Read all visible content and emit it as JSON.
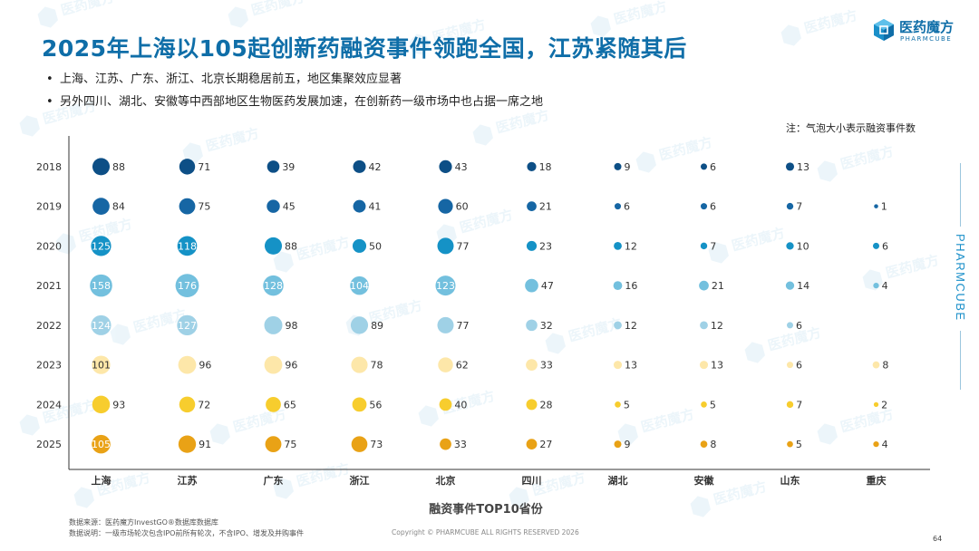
{
  "header": {
    "title": "2025年上海以105起创新药融资事件领跑全国，江苏紧随其后",
    "logo_cn": "医药魔方",
    "logo_en": "PHARMCUBE",
    "logo_icon": "cube-icon"
  },
  "bullets": [
    "上海、江苏、广东、浙江、北京长期稳居前五，地区集聚效应显著",
    "另外四川、湖北、安徽等中西部地区生物医药发展加速，在创新药一级市场中也占据一席之地"
  ],
  "note": "注：气泡大小表示融资事件数",
  "side_brand": "PHARMCUBE",
  "watermark": "医药魔方",
  "chart_data": {
    "type": "scatter",
    "subtype": "bubble",
    "xlabel": "融资事件TOP10省份",
    "ylabel": "",
    "categories": [
      "上海",
      "江苏",
      "广东",
      "浙江",
      "北京",
      "四川",
      "湖北",
      "安徽",
      "山东",
      "重庆"
    ],
    "years": [
      "2018",
      "2019",
      "2020",
      "2021",
      "2022",
      "2023",
      "2024",
      "2025"
    ],
    "series": [
      {
        "name": "2018",
        "color": "#0d4f86",
        "values": [
          88,
          71,
          39,
          42,
          43,
          18,
          9,
          6,
          13,
          null
        ]
      },
      {
        "name": "2019",
        "color": "#1666a4",
        "values": [
          84,
          75,
          45,
          41,
          60,
          21,
          6,
          6,
          7,
          1
        ]
      },
      {
        "name": "2020",
        "color": "#1592c6",
        "values": [
          125,
          118,
          88,
          50,
          77,
          23,
          12,
          7,
          10,
          6
        ]
      },
      {
        "name": "2021",
        "color": "#73c0de",
        "values": [
          158,
          176,
          128,
          104,
          123,
          47,
          16,
          21,
          14,
          4
        ]
      },
      {
        "name": "2022",
        "color": "#9fd1e6",
        "values": [
          124,
          127,
          98,
          89,
          77,
          32,
          12,
          12,
          6,
          null
        ]
      },
      {
        "name": "2023",
        "color": "#fde7a9",
        "values": [
          101,
          96,
          96,
          78,
          62,
          33,
          13,
          13,
          6,
          8
        ]
      },
      {
        "name": "2024",
        "color": "#f7cd2e",
        "values": [
          93,
          72,
          65,
          56,
          40,
          28,
          5,
          5,
          7,
          2
        ]
      },
      {
        "name": "2025",
        "color": "#e9a216",
        "values": [
          105,
          91,
          75,
          73,
          33,
          27,
          9,
          8,
          5,
          4
        ]
      }
    ],
    "size_encodes": "value",
    "grid": false,
    "legend": "none"
  },
  "footer": {
    "source": "数据来源：医药魔方InvestGO®数据库数据库",
    "explanation": "数据说明：一级市场轮次包含IPO前所有轮次，不含IPO、增发及并购事件",
    "copyright": "Copyright © PHARMCUBE ALL RIGHTS RESERVED 2026",
    "page": "64"
  }
}
